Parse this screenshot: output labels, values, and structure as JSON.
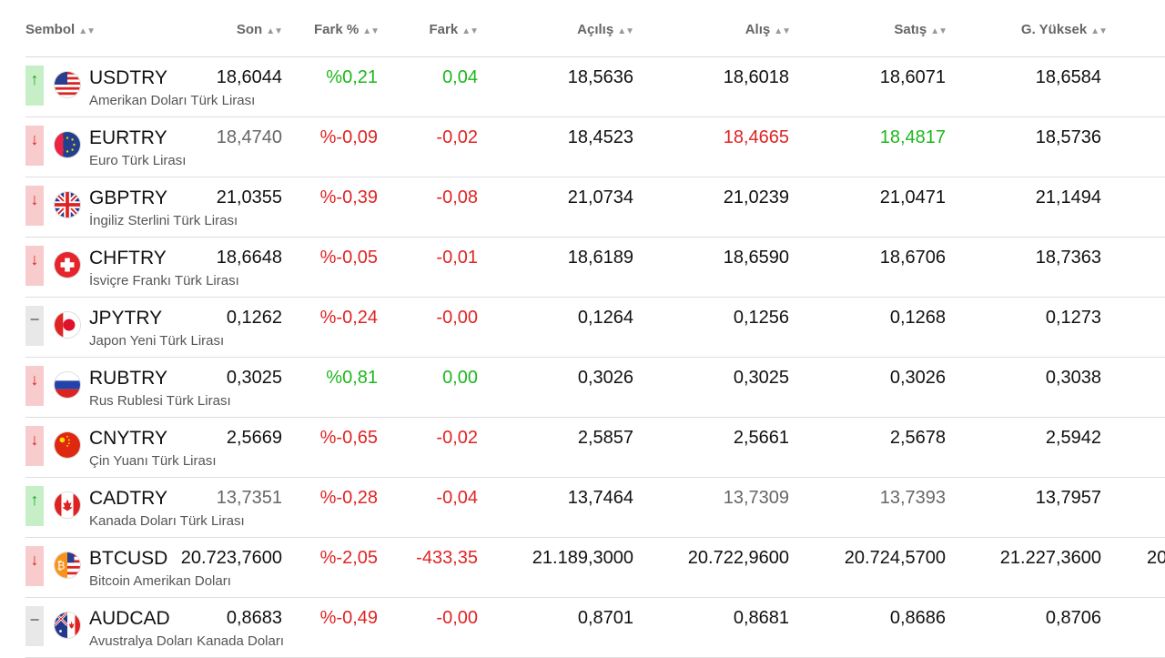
{
  "headers": {
    "symbol": "Sembol",
    "last": "Son",
    "change_pct": "Fark %",
    "change": "Fark",
    "open": "Açılış",
    "bid": "Alış",
    "ask": "Satış",
    "high": "G. Yüksek"
  },
  "sort_glyph": "▲▼",
  "colors": {
    "up": "#1cb81c",
    "down": "#e02424",
    "neutral": "#666666"
  },
  "rows": [
    {
      "trend": "up",
      "trend_glyph": "↑",
      "flag": "us-flag-icon",
      "symbol": "USDTRY",
      "name": "Amerikan Doları Türk Lirası",
      "last": "18,6044",
      "change_pct": "%0,21",
      "change": "0,04",
      "open": "18,5636",
      "bid": "18,6018",
      "ask": "18,6071",
      "high": "18,6584"
    },
    {
      "trend": "down",
      "trend_glyph": "↓",
      "flag": "eu-flag-icon",
      "symbol": "EURTRY",
      "name": "Euro Türk Lirası",
      "last": "18,4740",
      "change_pct": "%-0,09",
      "change": "-0,02",
      "open": "18,4523",
      "bid": "18,4665",
      "ask": "18,4817",
      "high": "18,5736"
    },
    {
      "trend": "down",
      "trend_glyph": "↓",
      "flag": "gb-flag-icon",
      "symbol": "GBPTRY",
      "name": "İngiliz Sterlini Türk Lirası",
      "last": "21,0355",
      "change_pct": "%-0,39",
      "change": "-0,08",
      "open": "21,0734",
      "bid": "21,0239",
      "ask": "21,0471",
      "high": "21,1494"
    },
    {
      "trend": "down",
      "trend_glyph": "↓",
      "flag": "ch-flag-icon",
      "symbol": "CHFTRY",
      "name": "İsviçre Frankı Türk Lirası",
      "last": "18,6648",
      "change_pct": "%-0,05",
      "change": "-0,01",
      "open": "18,6189",
      "bid": "18,6590",
      "ask": "18,6706",
      "high": "18,7363"
    },
    {
      "trend": "flat",
      "trend_glyph": "−",
      "flag": "jp-flag-icon",
      "symbol": "JPYTRY",
      "name": "Japon Yeni Türk Lirası",
      "last": "0,1262",
      "change_pct": "%-0,24",
      "change": "-0,00",
      "open": "0,1264",
      "bid": "0,1256",
      "ask": "0,1268",
      "high": "0,1273"
    },
    {
      "trend": "down",
      "trend_glyph": "↓",
      "flag": "ru-flag-icon",
      "symbol": "RUBTRY",
      "name": "Rus Rublesi Türk Lirası",
      "last": "0,3025",
      "change_pct": "%0,81",
      "change": "0,00",
      "open": "0,3026",
      "bid": "0,3025",
      "ask": "0,3026",
      "high": "0,3038"
    },
    {
      "trend": "down",
      "trend_glyph": "↓",
      "flag": "cn-flag-icon",
      "symbol": "CNYTRY",
      "name": "Çin Yuanı Türk Lirası",
      "last": "2,5669",
      "change_pct": "%-0,65",
      "change": "-0,02",
      "open": "2,5857",
      "bid": "2,5661",
      "ask": "2,5678",
      "high": "2,5942"
    },
    {
      "trend": "up",
      "trend_glyph": "↑",
      "flag": "ca-flag-icon",
      "symbol": "CADTRY",
      "name": "Kanada Doları Türk Lirası",
      "last": "13,7351",
      "change_pct": "%-0,28",
      "change": "-0,04",
      "open": "13,7464",
      "bid": "13,7309",
      "ask": "13,7393",
      "high": "13,7957"
    },
    {
      "trend": "down",
      "trend_glyph": "↓",
      "flag": "btc-us-flag-icon",
      "symbol": "BTCUSD",
      "name": "Bitcoin Amerikan Doları",
      "last": "20.723,7600",
      "change_pct": "%-2,05",
      "change": "-433,35",
      "open": "21.189,3000",
      "bid": "20.722,9600",
      "ask": "20.724,5700",
      "high": "21.227,3600",
      "extra": "20"
    },
    {
      "trend": "flat",
      "trend_glyph": "−",
      "flag": "au-ca-flag-icon",
      "symbol": "AUDCAD",
      "name": "Avustralya Doları Kanada Doları",
      "last": "0,8683",
      "change_pct": "%-0,49",
      "change": "-0,00",
      "open": "0,8701",
      "bid": "0,8681",
      "ask": "0,8686",
      "high": "0,8706"
    }
  ]
}
